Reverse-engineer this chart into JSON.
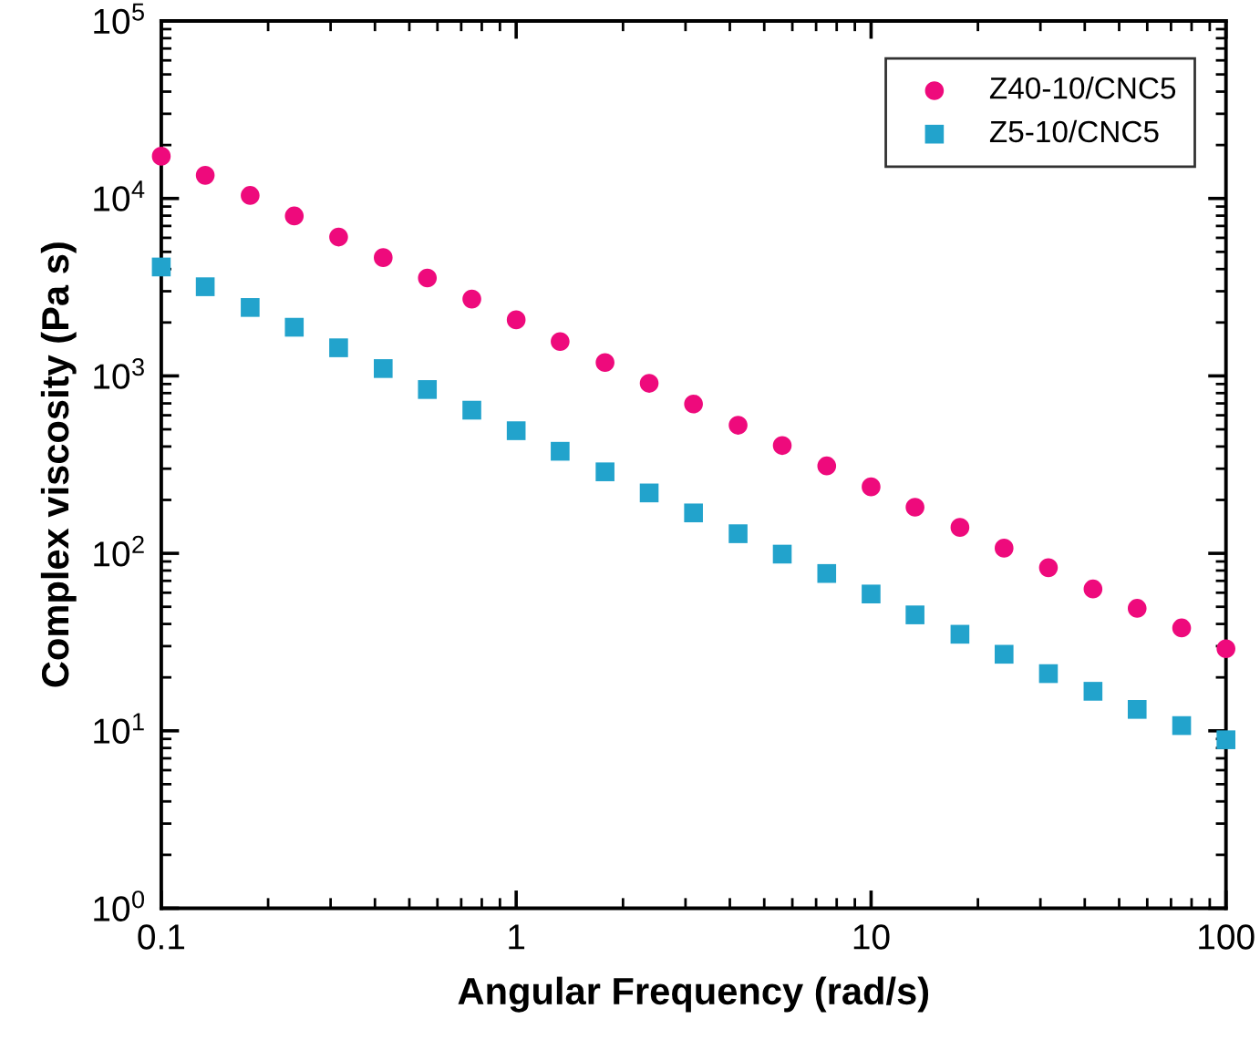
{
  "chart_data": {
    "type": "scatter",
    "xlabel": "Angular Frequency (rad/s)",
    "ylabel": "Complex viscosity (Pa s)",
    "x": [
      0.1,
      0.133,
      0.178,
      0.237,
      0.316,
      0.422,
      0.562,
      0.75,
      1,
      1.33,
      1.78,
      2.37,
      3.16,
      4.22,
      5.62,
      7.5,
      10,
      13.3,
      17.8,
      23.7,
      31.6,
      42.2,
      56.2,
      75,
      100
    ],
    "series": [
      {
        "name": "Z40-10/CNC5",
        "color": "#ee0a7c",
        "marker": "circle",
        "values": [
          17300,
          13500,
          10400,
          7970,
          6060,
          4640,
          3560,
          2710,
          2070,
          1560,
          1190,
          908,
          695,
          527,
          405,
          311,
          237,
          182,
          140,
          107,
          83,
          63,
          49,
          38,
          29
        ]
      },
      {
        "name": "Z5-10/CNC5",
        "color": "#22a3cc",
        "marker": "square",
        "values": [
          4110,
          3180,
          2430,
          1880,
          1440,
          1100,
          838,
          641,
          491,
          376,
          288,
          219,
          169,
          129,
          99,
          77,
          59,
          45,
          35,
          27,
          21,
          16.7,
          13.2,
          10.7,
          8.9
        ]
      }
    ],
    "log": "xy",
    "xlim": [
      0.1,
      100
    ],
    "ylim": [
      1,
      100000
    ],
    "xticks": [
      0.1,
      1,
      10,
      100
    ],
    "yticks": [
      {
        "value": 1,
        "label": "10$^{0}$"
      },
      {
        "value": 10,
        "label": "10$^{1}$"
      },
      {
        "value": 100,
        "label": "10$^{2}$"
      },
      {
        "value": 1000,
        "label": "10$^{3}$"
      },
      {
        "value": 10000,
        "label": "10$^{4}$"
      },
      {
        "value": 100000,
        "label": "10$^{5}$"
      }
    ],
    "grid": false,
    "legend": "top right"
  }
}
